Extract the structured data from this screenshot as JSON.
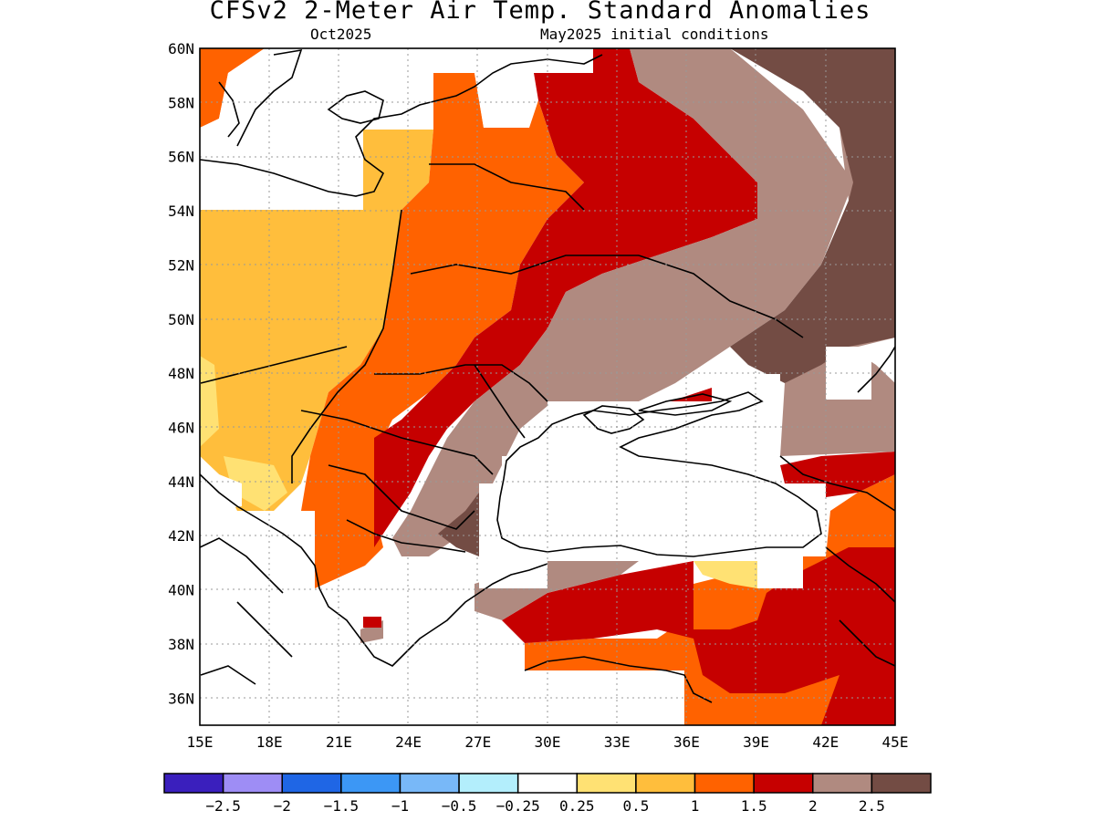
{
  "header": {
    "title": "CFSv2 2-Meter Air Temp. Standard Anomalies",
    "subtitle_month": "Oct2025",
    "subtitle_init": "May2025 initial conditions"
  },
  "map": {
    "lon_labels": [
      "15E",
      "18E",
      "21E",
      "24E",
      "27E",
      "30E",
      "33E",
      "36E",
      "39E",
      "42E",
      "45E"
    ],
    "lat_labels": [
      "60N",
      "58N",
      "56N",
      "54N",
      "52N",
      "50N",
      "48N",
      "46N",
      "44N",
      "42N",
      "40N",
      "38N",
      "36N"
    ],
    "lon_range": [
      15,
      45
    ],
    "lat_range": [
      35,
      60
    ],
    "grid": "dotted"
  },
  "legend": {
    "labels": [
      "-2.5",
      "-2",
      "-1.5",
      "-1",
      "-0.5",
      "-0.25",
      "0.25",
      "0.5",
      "1",
      "1.5",
      "2",
      "2.5"
    ],
    "colors": [
      "#3a1fbd",
      "#9e8df5",
      "#1f66e5",
      "#3c97f5",
      "#78b8f8",
      "#b3eefc",
      "#ffffff",
      "#ffe173",
      "#ffbe3c",
      "#ff6200",
      "#c60000",
      "#b08a80",
      "#734c44"
    ]
  }
}
